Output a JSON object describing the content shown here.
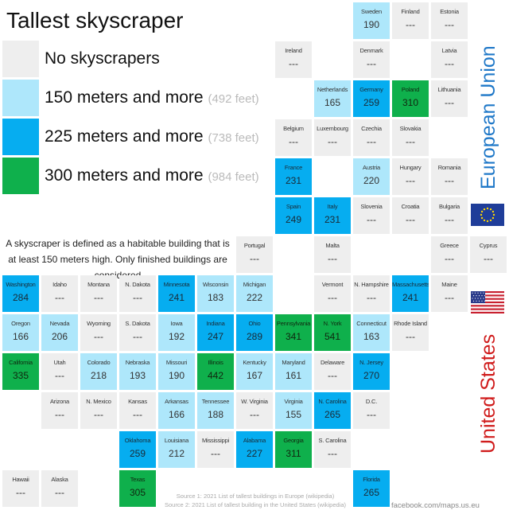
{
  "title": "Tallest skyscraper",
  "legend": [
    {
      "label": "No skyscrapers",
      "feet": "",
      "color": "#eeeeee"
    },
    {
      "label": "150 meters and more",
      "feet": "(492 feet)",
      "color": "#aee7fb"
    },
    {
      "label": "225 meters and more",
      "feet": "(738 feet)",
      "color": "#06adf0"
    },
    {
      "label": "300 meters and more",
      "feet": "(984 feet)",
      "color": "#0fb04c"
    }
  ],
  "note": "A skyscraper is defined as a habitable building that is at least 150 meters high. Only finished buildings are considered",
  "regions": {
    "eu": "European Union",
    "us": "United States"
  },
  "sources": [
    "Source 1: 2021 List of tallest buildings in Europe (wikipedia)",
    "Source 2: 2021 List of tallest building in the United States (wikipedia)"
  ],
  "credit": "facebook.com/maps.us.eu",
  "colors": {
    "none": "#eeeeee",
    "150m": "#aee7fb",
    "225m": "#06adf0",
    "300m": "#0fb04c",
    "eu_label": "#1f78c8",
    "us_label": "#d01c1c"
  },
  "icons": {
    "eu": "eu-flag-icon",
    "us": "us-flag-icon"
  },
  "eu": [
    {
      "name": "Sweden",
      "value": "190",
      "level": 1,
      "col": 9,
      "row": 0
    },
    {
      "name": "Finland",
      "value": "---",
      "level": 0,
      "col": 10,
      "row": 0
    },
    {
      "name": "Estonia",
      "value": "---",
      "level": 0,
      "col": 11,
      "row": 0
    },
    {
      "name": "Ireland",
      "value": "---",
      "level": 0,
      "col": 7,
      "row": 1
    },
    {
      "name": "Denmark",
      "value": "---",
      "level": 0,
      "col": 9,
      "row": 1
    },
    {
      "name": "Latvia",
      "value": "---",
      "level": 0,
      "col": 11,
      "row": 1
    },
    {
      "name": "Netherlands",
      "value": "165",
      "level": 1,
      "col": 8,
      "row": 2
    },
    {
      "name": "Germany",
      "value": "259",
      "level": 2,
      "col": 9,
      "row": 2
    },
    {
      "name": "Poland",
      "value": "310",
      "level": 3,
      "col": 10,
      "row": 2
    },
    {
      "name": "Lithuania",
      "value": "---",
      "level": 0,
      "col": 11,
      "row": 2
    },
    {
      "name": "Belgium",
      "value": "---",
      "level": 0,
      "col": 7,
      "row": 3
    },
    {
      "name": "Luxembourg",
      "value": "---",
      "level": 0,
      "col": 8,
      "row": 3
    },
    {
      "name": "Czechia",
      "value": "---",
      "level": 0,
      "col": 9,
      "row": 3
    },
    {
      "name": "Slovakia",
      "value": "---",
      "level": 0,
      "col": 10,
      "row": 3
    },
    {
      "name": "France",
      "value": "231",
      "level": 2,
      "col": 7,
      "row": 4
    },
    {
      "name": "Austria",
      "value": "220",
      "level": 1,
      "col": 9,
      "row": 4
    },
    {
      "name": "Hungary",
      "value": "---",
      "level": 0,
      "col": 10,
      "row": 4
    },
    {
      "name": "Romania",
      "value": "---",
      "level": 0,
      "col": 11,
      "row": 4
    },
    {
      "name": "Spain",
      "value": "249",
      "level": 2,
      "col": 7,
      "row": 5
    },
    {
      "name": "Italy",
      "value": "231",
      "level": 2,
      "col": 8,
      "row": 5
    },
    {
      "name": "Slovenia",
      "value": "---",
      "level": 0,
      "col": 9,
      "row": 5
    },
    {
      "name": "Croatia",
      "value": "---",
      "level": 0,
      "col": 10,
      "row": 5
    },
    {
      "name": "Bulgaria",
      "value": "---",
      "level": 0,
      "col": 11,
      "row": 5
    },
    {
      "name": "Portugal",
      "value": "---",
      "level": 0,
      "col": 6,
      "row": 6
    },
    {
      "name": "Malta",
      "value": "---",
      "level": 0,
      "col": 8,
      "row": 6
    },
    {
      "name": "Greece",
      "value": "---",
      "level": 0,
      "col": 11,
      "row": 6
    },
    {
      "name": "Cyprus",
      "value": "---",
      "level": 0,
      "col": 12,
      "row": 6
    }
  ],
  "us": [
    {
      "name": "Washington",
      "value": "284",
      "level": 2,
      "col": 0,
      "row": 7
    },
    {
      "name": "Idaho",
      "value": "---",
      "level": 0,
      "col": 1,
      "row": 7
    },
    {
      "name": "Montana",
      "value": "---",
      "level": 0,
      "col": 2,
      "row": 7
    },
    {
      "name": "N. Dakota",
      "value": "---",
      "level": 0,
      "col": 3,
      "row": 7
    },
    {
      "name": "Minnesota",
      "value": "241",
      "level": 2,
      "col": 4,
      "row": 7
    },
    {
      "name": "Wisconsin",
      "value": "183",
      "level": 1,
      "col": 5,
      "row": 7
    },
    {
      "name": "Michigan",
      "value": "222",
      "level": 1,
      "col": 6,
      "row": 7
    },
    {
      "name": "Vermont",
      "value": "---",
      "level": 0,
      "col": 8,
      "row": 7
    },
    {
      "name": "N. Hampshire",
      "value": "---",
      "level": 0,
      "col": 9,
      "row": 7
    },
    {
      "name": "Massachusetts",
      "value": "241",
      "level": 2,
      "col": 10,
      "row": 7
    },
    {
      "name": "Maine",
      "value": "---",
      "level": 0,
      "col": 11,
      "row": 7
    },
    {
      "name": "Oregon",
      "value": "166",
      "level": 1,
      "col": 0,
      "row": 8
    },
    {
      "name": "Nevada",
      "value": "206",
      "level": 1,
      "col": 1,
      "row": 8
    },
    {
      "name": "Wyoming",
      "value": "---",
      "level": 0,
      "col": 2,
      "row": 8
    },
    {
      "name": "S. Dakota",
      "value": "---",
      "level": 0,
      "col": 3,
      "row": 8
    },
    {
      "name": "Iowa",
      "value": "192",
      "level": 1,
      "col": 4,
      "row": 8
    },
    {
      "name": "Indiana",
      "value": "247",
      "level": 2,
      "col": 5,
      "row": 8
    },
    {
      "name": "Ohio",
      "value": "289",
      "level": 2,
      "col": 6,
      "row": 8
    },
    {
      "name": "Pennsylvania",
      "value": "341",
      "level": 3,
      "col": 7,
      "row": 8
    },
    {
      "name": "N. York",
      "value": "541",
      "level": 3,
      "col": 8,
      "row": 8
    },
    {
      "name": "Connecticut",
      "value": "163",
      "level": 1,
      "col": 9,
      "row": 8
    },
    {
      "name": "Rhode Island",
      "value": "---",
      "level": 0,
      "col": 10,
      "row": 8
    },
    {
      "name": "California",
      "value": "335",
      "level": 3,
      "col": 0,
      "row": 9
    },
    {
      "name": "Utah",
      "value": "---",
      "level": 0,
      "col": 1,
      "row": 9
    },
    {
      "name": "Colorado",
      "value": "218",
      "level": 1,
      "col": 2,
      "row": 9
    },
    {
      "name": "Nebraska",
      "value": "193",
      "level": 1,
      "col": 3,
      "row": 9
    },
    {
      "name": "Missouri",
      "value": "190",
      "level": 1,
      "col": 4,
      "row": 9
    },
    {
      "name": "Illinois",
      "value": "442",
      "level": 3,
      "col": 5,
      "row": 9
    },
    {
      "name": "Kentucky",
      "value": "167",
      "level": 1,
      "col": 6,
      "row": 9
    },
    {
      "name": "Maryland",
      "value": "161",
      "level": 1,
      "col": 7,
      "row": 9
    },
    {
      "name": "Delaware",
      "value": "---",
      "level": 0,
      "col": 8,
      "row": 9
    },
    {
      "name": "N. Jersey",
      "value": "270",
      "level": 2,
      "col": 9,
      "row": 9
    },
    {
      "name": "Arizona",
      "value": "---",
      "level": 0,
      "col": 1,
      "row": 10
    },
    {
      "name": "N. Mexico",
      "value": "---",
      "level": 0,
      "col": 2,
      "row": 10
    },
    {
      "name": "Kansas",
      "value": "---",
      "level": 0,
      "col": 3,
      "row": 10
    },
    {
      "name": "Arkansas",
      "value": "166",
      "level": 1,
      "col": 4,
      "row": 10
    },
    {
      "name": "Tennessee",
      "value": "188",
      "level": 1,
      "col": 5,
      "row": 10
    },
    {
      "name": "W. Virginia",
      "value": "---",
      "level": 0,
      "col": 6,
      "row": 10
    },
    {
      "name": "Virginia",
      "value": "155",
      "level": 1,
      "col": 7,
      "row": 10
    },
    {
      "name": "N. Carolina",
      "value": "265",
      "level": 2,
      "col": 8,
      "row": 10
    },
    {
      "name": "D.C.",
      "value": "---",
      "level": 0,
      "col": 9,
      "row": 10
    },
    {
      "name": "Oklahoma",
      "value": "259",
      "level": 2,
      "col": 3,
      "row": 11
    },
    {
      "name": "Louisiana",
      "value": "212",
      "level": 1,
      "col": 4,
      "row": 11
    },
    {
      "name": "Mississippi",
      "value": "---",
      "level": 0,
      "col": 5,
      "row": 11
    },
    {
      "name": "Alabama",
      "value": "227",
      "level": 2,
      "col": 6,
      "row": 11
    },
    {
      "name": "Georgia",
      "value": "311",
      "level": 3,
      "col": 7,
      "row": 11
    },
    {
      "name": "S. Carolina",
      "value": "---",
      "level": 0,
      "col": 8,
      "row": 11
    },
    {
      "name": "Hawaii",
      "value": "---",
      "level": 0,
      "col": 0,
      "row": 12
    },
    {
      "name": "Alaska",
      "value": "---",
      "level": 0,
      "col": 1,
      "row": 12
    },
    {
      "name": "Texas",
      "value": "305",
      "level": 3,
      "col": 3,
      "row": 12
    },
    {
      "name": "Florida",
      "value": "265",
      "level": 2,
      "col": 9,
      "row": 12
    }
  ]
}
